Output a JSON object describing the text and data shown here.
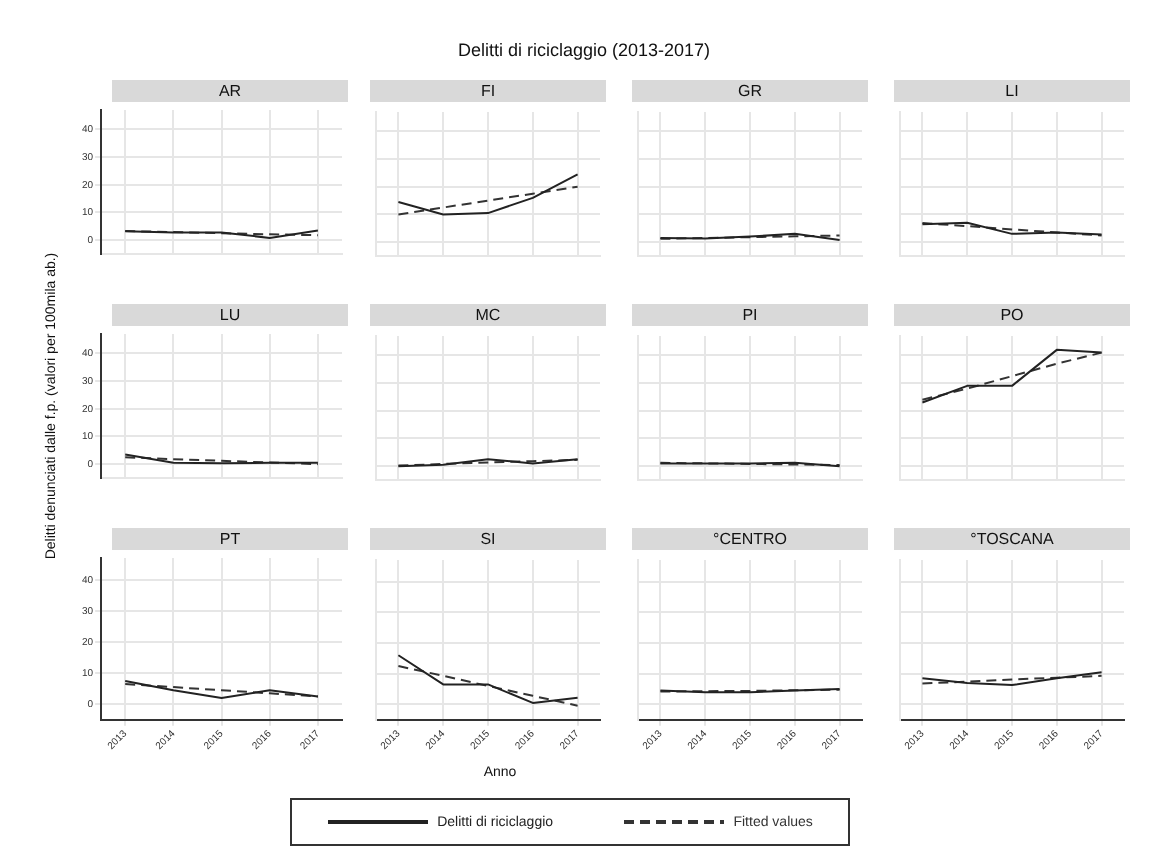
{
  "chart_data": [
    {
      "type": "line",
      "title": "AR",
      "annotations": [
        "Delitti di riciclaggio (2013-2017)"
      ],
      "categories": [
        "2013",
        "2014",
        "2015",
        "2016",
        "2017"
      ],
      "ylim": [
        -5,
        47
      ],
      "yticks": [
        0,
        10,
        20,
        30,
        40
      ],
      "grid": true,
      "tick_labels": "y",
      "series": [
        {
          "color": "#222222",
          "line_style": "solid",
          "values": [
            3.2,
            2.8,
            2.8,
            0.8,
            3.5
          ]
        },
        {
          "color": "#333333",
          "line_style": "dashed",
          "values": [
            3.3,
            2.9,
            2.5,
            2.1,
            1.8
          ]
        }
      ]
    },
    {
      "type": "line",
      "title": "FI",
      "categories": [
        "2013",
        "2014",
        "2015",
        "2016",
        "2017"
      ],
      "ylim": [
        -5,
        47
      ],
      "yticks": [
        0,
        10,
        20,
        30,
        40
      ],
      "grid": true,
      "tick_labels": false,
      "series": [
        {
          "color": "#222222",
          "line_style": "solid",
          "values": [
            14.5,
            10,
            10.5,
            16,
            24.5
          ]
        },
        {
          "color": "#333333",
          "line_style": "dashed",
          "values": [
            10,
            12.5,
            15,
            17.5,
            20
          ]
        }
      ]
    },
    {
      "type": "line",
      "title": "GR",
      "categories": [
        "2013",
        "2014",
        "2015",
        "2016",
        "2017"
      ],
      "ylim": [
        -5,
        47
      ],
      "yticks": [
        0,
        10,
        20,
        30,
        40
      ],
      "grid": true,
      "tick_labels": false,
      "series": [
        {
          "color": "#222222",
          "line_style": "solid",
          "values": [
            1.5,
            1.3,
            2,
            3,
            0.8
          ]
        },
        {
          "color": "#333333",
          "line_style": "dashed",
          "values": [
            1.2,
            1.5,
            1.8,
            2.1,
            2.4
          ]
        }
      ]
    },
    {
      "type": "line",
      "title": "LI",
      "categories": [
        "2013",
        "2014",
        "2015",
        "2016",
        "2017"
      ],
      "ylim": [
        -5,
        47
      ],
      "yticks": [
        0,
        10,
        20,
        30,
        40
      ],
      "grid": true,
      "tick_labels": false,
      "series": [
        {
          "color": "#222222",
          "line_style": "solid",
          "values": [
            6.5,
            7,
            3,
            3.5,
            2.8
          ]
        },
        {
          "color": "#333333",
          "line_style": "dashed",
          "values": [
            6.9,
            5.8,
            4.6,
            3.5,
            2.4
          ]
        }
      ]
    },
    {
      "type": "line",
      "title": "LU",
      "ylabel": "Delitti denunciati dalle f.p. (valori per 100mila ab.)",
      "categories": [
        "2013",
        "2014",
        "2015",
        "2016",
        "2017"
      ],
      "ylim": [
        -5,
        47
      ],
      "yticks": [
        0,
        10,
        20,
        30,
        40
      ],
      "grid": true,
      "tick_labels": "y",
      "series": [
        {
          "color": "#222222",
          "line_style": "solid",
          "values": [
            3.5,
            0.5,
            0.3,
            0.5,
            0.5
          ]
        },
        {
          "color": "#333333",
          "line_style": "dashed",
          "values": [
            2.5,
            1.8,
            1.2,
            0.6,
            0
          ]
        }
      ]
    },
    {
      "type": "line",
      "title": "MC",
      "categories": [
        "2013",
        "2014",
        "2015",
        "2016",
        "2017"
      ],
      "ylim": [
        -5,
        47
      ],
      "yticks": [
        0,
        10,
        20,
        30,
        40
      ],
      "grid": true,
      "tick_labels": false,
      "series": [
        {
          "color": "#222222",
          "line_style": "solid",
          "values": [
            0,
            0.5,
            2.5,
            1,
            2.5
          ]
        },
        {
          "color": "#333333",
          "line_style": "dashed",
          "values": [
            0.2,
            0.8,
            1.3,
            1.8,
            2.3
          ]
        }
      ]
    },
    {
      "type": "line",
      "title": "PI",
      "categories": [
        "2013",
        "2014",
        "2015",
        "2016",
        "2017"
      ],
      "ylim": [
        -5,
        47
      ],
      "yticks": [
        0,
        10,
        20,
        30,
        40
      ],
      "grid": true,
      "tick_labels": false,
      "series": [
        {
          "color": "#222222",
          "line_style": "solid",
          "values": [
            1,
            1,
            1,
            1.2,
            0
          ]
        },
        {
          "color": "#333333",
          "line_style": "dashed",
          "values": [
            1.2,
            1,
            0.8,
            0.6,
            0.4
          ]
        }
      ]
    },
    {
      "type": "line",
      "title": "PO",
      "categories": [
        "2013",
        "2014",
        "2015",
        "2016",
        "2017"
      ],
      "ylim": [
        -5,
        47
      ],
      "yticks": [
        0,
        10,
        20,
        30,
        40
      ],
      "grid": true,
      "tick_labels": false,
      "series": [
        {
          "color": "#222222",
          "line_style": "solid",
          "values": [
            23,
            29,
            29,
            42,
            41
          ]
        },
        {
          "color": "#333333",
          "line_style": "dashed",
          "values": [
            24,
            28,
            32.5,
            37,
            41
          ]
        }
      ]
    },
    {
      "type": "line",
      "title": "PT",
      "categories": [
        "2013",
        "2014",
        "2015",
        "2016",
        "2017"
      ],
      "ylim": [
        -5,
        47
      ],
      "yticks": [
        0,
        10,
        20,
        30,
        40
      ],
      "grid": true,
      "series": [
        {
          "color": "#222222",
          "line_style": "solid",
          "values": [
            7.5,
            4.5,
            2,
            4.5,
            2.5
          ]
        },
        {
          "color": "#333333",
          "line_style": "dashed",
          "values": [
            6.5,
            5.5,
            4.5,
            3.5,
            2.5
          ]
        }
      ]
    },
    {
      "type": "line",
      "title": "SI",
      "xlabel": "Anno",
      "legend": "bottom",
      "categories": [
        "2013",
        "2014",
        "2015",
        "2016",
        "2017"
      ],
      "ylim": [
        -5,
        47
      ],
      "yticks": [
        0,
        10,
        20,
        30,
        40
      ],
      "grid": true,
      "tick_labels": "x",
      "series": [
        {
          "name": "Delitti di riciclaggio",
          "color": "#222222",
          "line_style": "solid",
          "values": [
            16,
            6.5,
            6.5,
            0.5,
            2.2
          ]
        },
        {
          "name": "Fitted values",
          "color": "#333333",
          "line_style": "dashed",
          "values": [
            12.5,
            9.3,
            6,
            2.8,
            -0.4
          ]
        }
      ]
    },
    {
      "type": "line",
      "title": "°CENTRO",
      "categories": [
        "2013",
        "2014",
        "2015",
        "2016",
        "2017"
      ],
      "ylim": [
        -5,
        47
      ],
      "yticks": [
        0,
        10,
        20,
        30,
        40
      ],
      "grid": true,
      "tick_labels": "x",
      "series": [
        {
          "color": "#222222",
          "line_style": "solid",
          "values": [
            4.5,
            4,
            4,
            4.5,
            5
          ]
        },
        {
          "color": "#333333",
          "line_style": "dashed",
          "values": [
            4.2,
            4.3,
            4.4,
            4.6,
            4.8
          ]
        }
      ]
    },
    {
      "type": "line",
      "title": "°TOSCANA",
      "categories": [
        "2013",
        "2014",
        "2015",
        "2016",
        "2017"
      ],
      "ylim": [
        -5,
        47
      ],
      "yticks": [
        0,
        10,
        20,
        30,
        40
      ],
      "grid": true,
      "tick_labels": "x",
      "series": [
        {
          "color": "#222222",
          "line_style": "solid",
          "values": [
            8.5,
            7,
            6.3,
            8.5,
            10.5
          ]
        },
        {
          "color": "#333333",
          "line_style": "dashed",
          "values": [
            6.8,
            7.4,
            8.1,
            8.7,
            9.3
          ]
        }
      ]
    }
  ]
}
